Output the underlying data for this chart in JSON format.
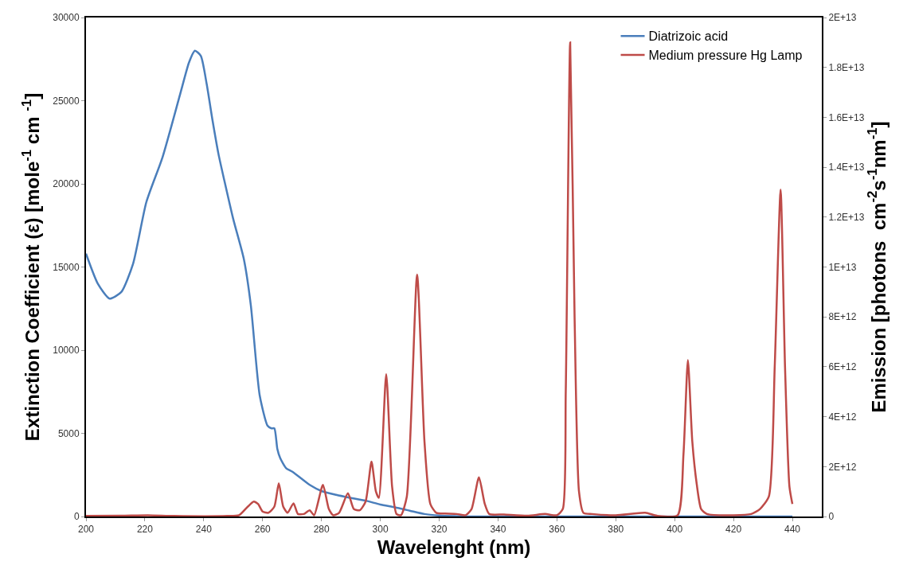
{
  "chart_data": {
    "type": "line",
    "xlabel": "Wavelenght (nm)",
    "ylabel": "Extinction Coefficient (ε) [mole$^{-1}$ cm $^{-1}$]",
    "y2label": "Emission [photons  cm$^{-2}$s$^{-1}$nm$^{-1}$]",
    "xlim": [
      200,
      450
    ],
    "xticks": [
      200,
      220,
      240,
      260,
      280,
      300,
      320,
      340,
      360,
      380,
      400,
      420,
      440
    ],
    "ylim": [
      0,
      30000
    ],
    "yticks": [
      0,
      5000,
      10000,
      15000,
      20000,
      25000,
      30000
    ],
    "y2lim": [
      0,
      20000000000000.0
    ],
    "y2ticks": [
      {
        "value": 0,
        "label": "0"
      },
      {
        "value": 2000000000000.0,
        "label": "2E+12"
      },
      {
        "value": 4000000000000.0,
        "label": "4E+12"
      },
      {
        "value": 6000000000000.0,
        "label": "6E+12"
      },
      {
        "value": 8000000000000.0,
        "label": "8E+12"
      },
      {
        "value": 10000000000000.0,
        "label": "1E+13"
      },
      {
        "value": 12000000000000.0,
        "label": "1.2E+13"
      },
      {
        "value": 14000000000000.0,
        "label": "1.4E+13"
      },
      {
        "value": 16000000000000.0,
        "label": "1.6E+13"
      },
      {
        "value": 18000000000000.0,
        "label": "1.8E+13"
      },
      {
        "value": 20000000000000.0,
        "label": "2E+13"
      }
    ],
    "grid": false,
    "legend": "top right",
    "marker": "none",
    "line_style": "solid",
    "series": [
      {
        "name": "Diatrizoic acid",
        "color": "#4a7ebb",
        "x": [
          200,
          204,
          208,
          212,
          216,
          220.5,
          226,
          232,
          235,
          237,
          239,
          241,
          243,
          245,
          247,
          250,
          253.6,
          256,
          259,
          261.7,
          263,
          264,
          265,
          266,
          268,
          270,
          272,
          276,
          280,
          285,
          289,
          295,
          300,
          305,
          310,
          315,
          320,
          325,
          330,
          340,
          360,
          400,
          440
        ],
        "values": [
          15800,
          14000,
          13100,
          13500,
          15200,
          18900,
          21600,
          25400,
          27300,
          28000,
          27700,
          26000,
          23800,
          21800,
          20200,
          17900,
          15500,
          12700,
          7300,
          5450,
          5300,
          5300,
          4070,
          3500,
          2900,
          2700,
          2440,
          1900,
          1530,
          1300,
          1150,
          950,
          720,
          550,
          350,
          150,
          60,
          20,
          0,
          0,
          0,
          0,
          0
        ]
      },
      {
        "name": "Medium pressure Hg Lamp",
        "color": "#be4b48",
        "axis": "y2",
        "x": [
          200,
          212,
          221,
          230,
          248,
          252,
          255,
          257,
          258.5,
          260,
          262,
          264,
          265.5,
          267,
          268.5,
          270.5,
          272,
          274,
          276,
          277.5,
          280.5,
          282.5,
          284,
          286,
          289,
          291,
          293,
          295,
          297,
          298.5,
          299.5,
          302,
          304,
          305.5,
          307,
          309,
          312.5,
          315,
          317,
          319,
          322,
          326,
          329,
          331,
          333.5,
          335.5,
          337,
          342,
          350,
          356,
          360,
          362,
          363,
          364.5,
          366,
          367.5,
          369,
          372,
          380,
          390,
          394,
          401,
          403,
          404.5,
          406,
          407.5,
          409,
          411,
          420,
          426,
          429,
          432,
          434,
          436,
          437.5,
          439,
          440
        ],
        "values": [
          20000000000.0,
          30000000000.0,
          50000000000.0,
          20000000000.0,
          20000000000.0,
          50000000000.0,
          400000000000.0,
          600000000000.0,
          500000000000.0,
          200000000000.0,
          150000000000.0,
          400000000000.0,
          1330000000000.0,
          400000000000.0,
          150000000000.0,
          530000000000.0,
          100000000000.0,
          100000000000.0,
          250000000000.0,
          50000000000.0,
          1270000000000.0,
          300000000000.0,
          50000000000.0,
          150000000000.0,
          930000000000.0,
          300000000000.0,
          250000000000.0,
          600000000000.0,
          2200000000000.0,
          1000000000000.0,
          750000000000.0,
          5700000000000.0,
          1200000000000.0,
          100000000000.0,
          50000000000.0,
          800000000000.0,
          9700000000000.0,
          3000000000000.0,
          500000000000.0,
          150000000000.0,
          120000000000.0,
          100000000000.0,
          50000000000.0,
          300000000000.0,
          1570000000000.0,
          500000000000.0,
          100000000000.0,
          80000000000.0,
          30000000000.0,
          100000000000.0,
          50000000000.0,
          300000000000.0,
          5000000000000.0,
          19000000000000.0,
          8000000000000.0,
          1000000000000.0,
          150000000000.0,
          100000000000.0,
          50000000000.0,
          150000000000.0,
          30000000000.0,
          50000000000.0,
          2500000000000.0,
          6270000000000.0,
          3000000000000.0,
          1300000000000.0,
          300000000000.0,
          100000000000.0,
          50000000000.0,
          100000000000.0,
          300000000000.0,
          800000000000.0,
          6000000000000.0,
          13100000000000.0,
          6000000000000.0,
          1200000000000.0,
          500000000000.0
        ]
      }
    ]
  }
}
